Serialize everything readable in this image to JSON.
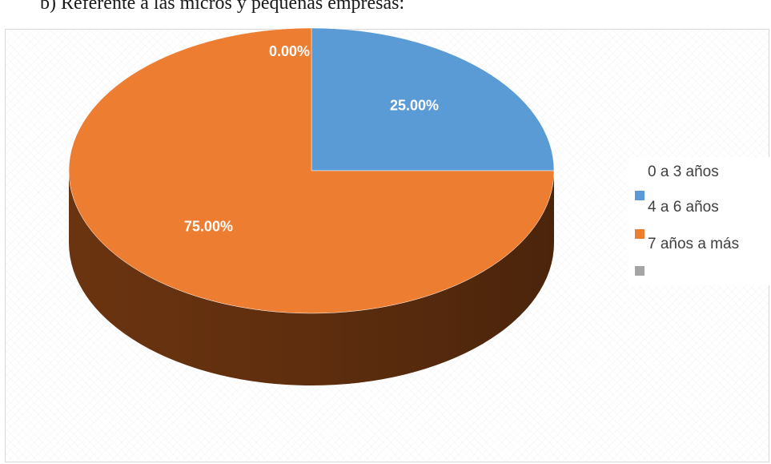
{
  "heading": "b)   Referente a las micros y pequeñas empresas:",
  "chart_data": {
    "type": "pie",
    "categories": [
      "0 a 3 años",
      "4 a 6 años",
      "7 años a más"
    ],
    "values": [
      0.0,
      25.0,
      75.0
    ],
    "data_labels": [
      "0.00%",
      "25.00%",
      "75.00%"
    ],
    "colors": [
      "#a5a5a5",
      "#5b9bd5",
      "#ed7d31"
    ],
    "side_colors": [
      "#6e6e6e",
      "#2e5e8c",
      "#6b3410"
    ],
    "style": "3d",
    "legend_position": "right"
  }
}
